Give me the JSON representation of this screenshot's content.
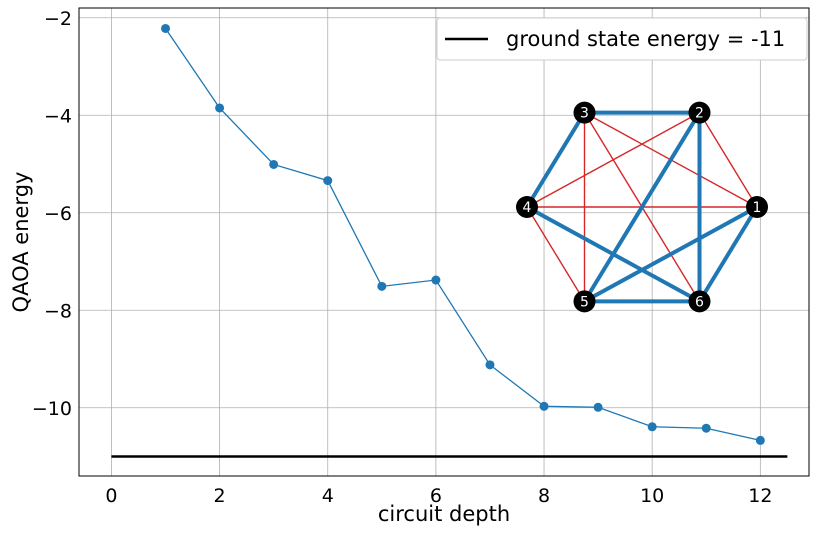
{
  "chart_data": {
    "type": "line",
    "xlabel": "circuit depth",
    "ylabel": "QAOA energy",
    "xlim": [
      -0.6,
      12.9
    ],
    "ylim": [
      -11.4,
      -1.8
    ],
    "x_ticks": [
      0,
      2,
      4,
      6,
      8,
      10,
      12
    ],
    "x_tick_labels": [
      "0",
      "2",
      "4",
      "6",
      "8",
      "10",
      "12"
    ],
    "y_ticks": [
      -2,
      -4,
      -6,
      -8,
      -10
    ],
    "y_tick_labels": [
      "−2",
      "−4",
      "−6",
      "−8",
      "−10"
    ],
    "grid": true,
    "legend_position": "top-right",
    "series": [
      {
        "name": "",
        "color": "#1f77b4",
        "marker": "circle",
        "x": [
          1,
          2,
          3,
          4,
          5,
          6,
          7,
          8,
          9,
          10,
          11,
          12
        ],
        "y": [
          -2.22,
          -3.85,
          -5.01,
          -5.34,
          -7.51,
          -7.38,
          -9.12,
          -9.97,
          -9.99,
          -10.39,
          -10.42,
          -10.67
        ]
      }
    ],
    "reference_line": {
      "name": "ground state energy = -11",
      "color": "#000000",
      "y": -11,
      "x_start": 0,
      "x_end": 12.5
    },
    "inset_graph": {
      "node_color": "#000000",
      "node_label_color": "#ffffff",
      "thin_edge_color": "#d62728",
      "thick_edge_color": "#1f77b4",
      "nodes": [
        {
          "id": "1",
          "label": "1"
        },
        {
          "id": "2",
          "label": "2"
        },
        {
          "id": "3",
          "label": "3"
        },
        {
          "id": "4",
          "label": "4"
        },
        {
          "id": "5",
          "label": "5"
        },
        {
          "id": "6",
          "label": "6"
        }
      ],
      "thin_edges": [
        [
          "1",
          "2"
        ],
        [
          "1",
          "3"
        ],
        [
          "1",
          "4"
        ],
        [
          "1",
          "5"
        ],
        [
          "2",
          "3"
        ],
        [
          "2",
          "4"
        ],
        [
          "3",
          "6"
        ],
        [
          "4",
          "6"
        ],
        [
          "3",
          "5"
        ],
        [
          "4",
          "5"
        ]
      ],
      "thick_edges": [
        [
          "3",
          "4"
        ],
        [
          "2",
          "5"
        ],
        [
          "2",
          "6"
        ],
        [
          "1",
          "6"
        ],
        [
          "4",
          "6"
        ],
        [
          "5",
          "6"
        ],
        [
          "1",
          "5"
        ],
        [
          "2",
          "3"
        ]
      ]
    }
  }
}
